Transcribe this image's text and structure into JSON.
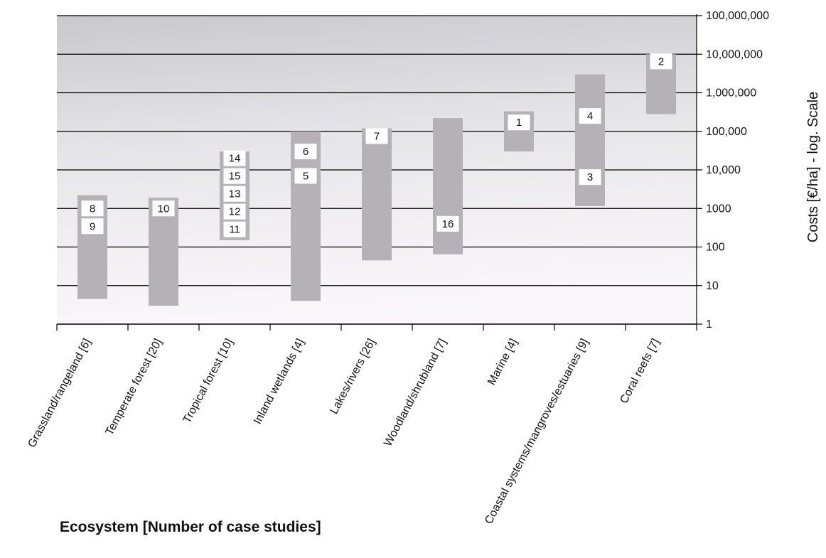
{
  "chart_data": {
    "type": "range-bar",
    "title": "",
    "xlabel": "Ecosystem [Number of case studies]",
    "ylabel": "Costs [€/ha] - log. Scale",
    "y_scale": "log",
    "ylim": [
      1,
      100000000
    ],
    "grid": true,
    "y_ticks": [
      {
        "value": 1,
        "label": "1"
      },
      {
        "value": 10,
        "label": "10"
      },
      {
        "value": 100,
        "label": "100"
      },
      {
        "value": 1000,
        "label": "1000"
      },
      {
        "value": 10000,
        "label": "10,000"
      },
      {
        "value": 100000,
        "label": "100,000"
      },
      {
        "value": 1000000,
        "label": "1,000,000"
      },
      {
        "value": 10000000,
        "label": "10,000,000"
      },
      {
        "value": 100000000,
        "label": "100,000,000"
      }
    ],
    "categories": [
      {
        "name": "Grassland/rangeland [6]",
        "low": 4.5,
        "high": 2200,
        "studies": [
          {
            "id": "8",
            "value": 1000
          },
          {
            "id": "9",
            "value": 500
          }
        ]
      },
      {
        "name": "Temperate forest [20]",
        "low": 3,
        "high": 1900,
        "studies": [
          {
            "id": "10",
            "value": 1000
          }
        ]
      },
      {
        "name": "Tropical forest [10]",
        "low": 150,
        "high": 30000,
        "studies": [
          {
            "id": "14",
            "value": 20000
          },
          {
            "id": "15",
            "value": 7000
          },
          {
            "id": "13",
            "value": 2600
          },
          {
            "id": "12",
            "value": 1000
          },
          {
            "id": "11",
            "value": 360
          }
        ]
      },
      {
        "name": "Inland wetlands [4]",
        "low": 4,
        "high": 100000,
        "studies": [
          {
            "id": "6",
            "value": 30000
          },
          {
            "id": "5",
            "value": 7000
          }
        ]
      },
      {
        "name": "Lakes/rivers [26]",
        "low": 45,
        "high": 120000,
        "studies": [
          {
            "id": "7",
            "value": 75000
          }
        ]
      },
      {
        "name": "Woodland/shrubland [7]",
        "low": 65,
        "high": 220000,
        "studies": [
          {
            "id": "16",
            "value": 400
          }
        ]
      },
      {
        "name": "Marine [4]",
        "low": 30000,
        "high": 330000,
        "studies": [
          {
            "id": "1",
            "value": 170000
          }
        ]
      },
      {
        "name": "Coastal systems/mangroves/estuaries [9]",
        "low": 1150,
        "high": 3000000,
        "studies": [
          {
            "id": "4",
            "value": 250000
          },
          {
            "id": "3",
            "value": 6500
          }
        ]
      },
      {
        "name": "Coral reefs [7]",
        "low": 280000,
        "high": 10000000,
        "studies": [
          {
            "id": "2",
            "value": 6500000
          }
        ]
      }
    ],
    "colors": {
      "bar": "#b4b2b6",
      "grid": "#000000",
      "label_box": "#ffffff"
    }
  }
}
